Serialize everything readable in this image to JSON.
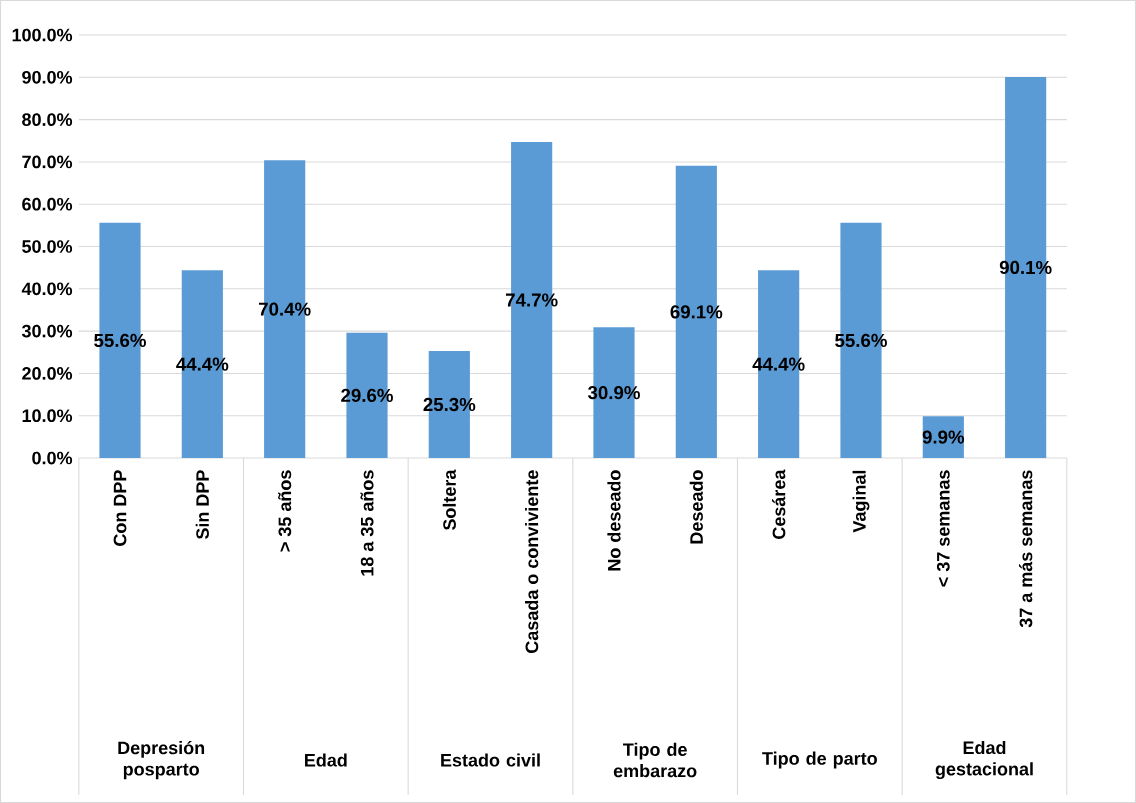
{
  "chart_data": {
    "type": "bar",
    "categories": [
      "Con DPP",
      "Sin DPP",
      "> 35 años",
      "18 a 35 años",
      "Soltera",
      "Casada o conviviente",
      "No deseado",
      "Deseado",
      "Cesárea",
      "Vaginal",
      "< 37 semanas",
      "37 a más semanas"
    ],
    "values": [
      55.6,
      44.4,
      70.4,
      29.6,
      25.3,
      74.7,
      30.9,
      69.1,
      44.4,
      55.6,
      9.9,
      90.1
    ],
    "value_labels": [
      "55.6%",
      "44.4%",
      "70.4%",
      "29.6%",
      "25.3%",
      "74.7%",
      "30.9%",
      "69.1%",
      "44.4%",
      "55.6%",
      "9.9%",
      "90.1%"
    ],
    "color": "#5b9bd5",
    "ylim": [
      0,
      100
    ],
    "yticks": [
      {
        "value": 0,
        "label": "0.0%"
      },
      {
        "value": 10,
        "label": "10.0%"
      },
      {
        "value": 20,
        "label": "20.0%"
      },
      {
        "value": 30,
        "label": "30.0%"
      },
      {
        "value": 40,
        "label": "40.0%"
      },
      {
        "value": 50,
        "label": "50.0%"
      },
      {
        "value": 60,
        "label": "60.0%"
      },
      {
        "value": 70,
        "label": "70.0%"
      },
      {
        "value": 80,
        "label": "80.0%"
      },
      {
        "value": 90,
        "label": "90.0%"
      },
      {
        "value": 100,
        "label": "100.0%"
      }
    ],
    "grid": "y",
    "annotations": [
      "Depresión posparto",
      "Edad",
      "Estado civil",
      "Tipo de embarazo",
      "Tipo de parto",
      "Edad gestacional"
    ]
  }
}
